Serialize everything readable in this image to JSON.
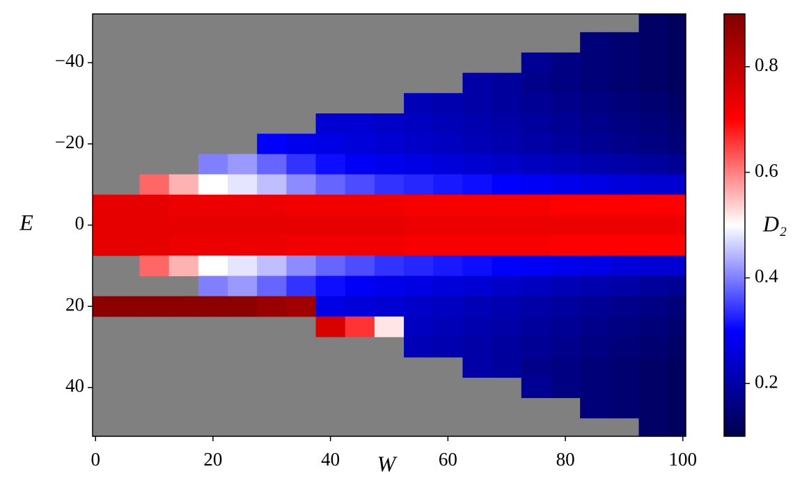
{
  "chart_data": {
    "type": "heatmap",
    "xlabel": "W",
    "ylabel": "E",
    "colorbar_label": "D₂",
    "x": [
      0,
      5,
      10,
      15,
      20,
      25,
      30,
      35,
      40,
      45,
      50,
      55,
      60,
      65,
      70,
      75,
      80,
      85,
      90,
      95,
      100
    ],
    "y": [
      -50,
      -45,
      -40,
      -35,
      -30,
      -25,
      -20,
      -15,
      -10,
      -5,
      0,
      5,
      10,
      15,
      20,
      25,
      30,
      35,
      40,
      45,
      50
    ],
    "z": [
      [
        null,
        null,
        null,
        null,
        null,
        null,
        null,
        null,
        null,
        null,
        null,
        null,
        null,
        null,
        null,
        null,
        null,
        null,
        null,
        0.13,
        0.12
      ],
      [
        null,
        null,
        null,
        null,
        null,
        null,
        null,
        null,
        null,
        null,
        null,
        null,
        null,
        null,
        null,
        null,
        null,
        0.15,
        0.14,
        0.13,
        0.12
      ],
      [
        null,
        null,
        null,
        null,
        null,
        null,
        null,
        null,
        null,
        null,
        null,
        null,
        null,
        null,
        null,
        0.18,
        0.16,
        0.15,
        0.14,
        0.13,
        0.12
      ],
      [
        null,
        null,
        null,
        null,
        null,
        null,
        null,
        null,
        null,
        null,
        null,
        null,
        null,
        0.2,
        0.19,
        0.17,
        0.16,
        0.15,
        0.14,
        0.13,
        0.12
      ],
      [
        null,
        null,
        null,
        null,
        null,
        null,
        null,
        null,
        null,
        null,
        null,
        0.22,
        0.21,
        0.2,
        0.19,
        0.18,
        0.17,
        0.16,
        0.15,
        0.14,
        0.13
      ],
      [
        null,
        null,
        null,
        null,
        null,
        null,
        null,
        null,
        0.25,
        0.25,
        0.24,
        0.23,
        0.22,
        0.21,
        0.2,
        0.19,
        0.18,
        0.17,
        0.16,
        0.15,
        0.14
      ],
      [
        null,
        null,
        null,
        null,
        null,
        null,
        0.3,
        0.28,
        0.27,
        0.26,
        0.25,
        0.24,
        0.23,
        0.22,
        0.21,
        0.2,
        0.19,
        0.18,
        0.17,
        0.16,
        0.15
      ],
      [
        null,
        null,
        null,
        null,
        0.4,
        0.42,
        0.38,
        0.34,
        0.31,
        0.29,
        0.28,
        0.27,
        0.26,
        0.25,
        0.24,
        0.23,
        0.22,
        0.21,
        0.2,
        0.19,
        0.18
      ],
      [
        null,
        null,
        0.62,
        0.56,
        0.5,
        0.48,
        0.45,
        0.41,
        0.38,
        0.36,
        0.34,
        0.33,
        0.32,
        0.31,
        0.3,
        0.29,
        0.28,
        0.27,
        0.26,
        0.25,
        0.25
      ],
      [
        0.74,
        0.74,
        0.74,
        0.73,
        0.73,
        0.73,
        0.73,
        0.72,
        0.72,
        0.72,
        0.72,
        0.71,
        0.71,
        0.71,
        0.71,
        0.71,
        0.7,
        0.7,
        0.7,
        0.7,
        0.7
      ],
      [
        0.74,
        0.74,
        0.74,
        0.74,
        0.74,
        0.74,
        0.74,
        0.74,
        0.74,
        0.74,
        0.74,
        0.73,
        0.73,
        0.73,
        0.73,
        0.73,
        0.73,
        0.73,
        0.73,
        0.73,
        0.73
      ],
      [
        0.74,
        0.74,
        0.74,
        0.73,
        0.73,
        0.73,
        0.73,
        0.72,
        0.72,
        0.72,
        0.72,
        0.71,
        0.71,
        0.71,
        0.71,
        0.71,
        0.7,
        0.7,
        0.7,
        0.7,
        0.7
      ],
      [
        null,
        null,
        0.62,
        0.56,
        0.5,
        0.48,
        0.45,
        0.41,
        0.38,
        0.36,
        0.34,
        0.33,
        0.32,
        0.31,
        0.3,
        0.29,
        0.28,
        0.27,
        0.26,
        0.25,
        0.25
      ],
      [
        null,
        null,
        null,
        null,
        0.4,
        0.42,
        0.38,
        0.34,
        0.31,
        0.29,
        0.28,
        0.27,
        0.26,
        0.25,
        0.24,
        0.23,
        0.22,
        0.21,
        0.2,
        0.19,
        0.18
      ],
      [
        0.88,
        0.88,
        0.88,
        0.88,
        0.88,
        0.88,
        0.86,
        0.85,
        0.27,
        0.26,
        0.25,
        0.24,
        0.23,
        0.22,
        0.21,
        0.2,
        0.19,
        0.18,
        0.17,
        0.16,
        0.15
      ],
      [
        null,
        null,
        null,
        null,
        null,
        null,
        null,
        null,
        0.76,
        0.66,
        0.52,
        0.23,
        0.22,
        0.21,
        0.2,
        0.19,
        0.18,
        0.17,
        0.16,
        0.15,
        0.14
      ],
      [
        null,
        null,
        null,
        null,
        null,
        null,
        null,
        null,
        null,
        null,
        null,
        0.22,
        0.21,
        0.2,
        0.19,
        0.18,
        0.17,
        0.16,
        0.15,
        0.14,
        0.13
      ],
      [
        null,
        null,
        null,
        null,
        null,
        null,
        null,
        null,
        null,
        null,
        null,
        null,
        null,
        0.2,
        0.19,
        0.17,
        0.16,
        0.15,
        0.14,
        0.13,
        0.12
      ],
      [
        null,
        null,
        null,
        null,
        null,
        null,
        null,
        null,
        null,
        null,
        null,
        null,
        null,
        null,
        null,
        0.18,
        0.16,
        0.15,
        0.14,
        0.13,
        0.12
      ],
      [
        null,
        null,
        null,
        null,
        null,
        null,
        null,
        null,
        null,
        null,
        null,
        null,
        null,
        null,
        null,
        null,
        null,
        0.15,
        0.14,
        0.13,
        0.12
      ],
      [
        null,
        null,
        null,
        null,
        null,
        null,
        null,
        null,
        null,
        null,
        null,
        null,
        null,
        null,
        null,
        null,
        null,
        null,
        null,
        0.13,
        0.12
      ]
    ],
    "xlim": [
      -0.5,
      100.5
    ],
    "ylim": [
      -52,
      52
    ],
    "y_inverted": true,
    "xticks": [
      0,
      20,
      40,
      60,
      80,
      100
    ],
    "yticks": [
      {
        "value": -40,
        "label": "−40"
      },
      {
        "value": -20,
        "label": "−20"
      },
      0,
      20,
      40
    ],
    "clim": [
      0.1,
      0.9
    ],
    "cticks": [
      0.2,
      0.4,
      0.6,
      0.8
    ],
    "colormap": [
      "#00004c",
      "#0000ff",
      "#ffffff",
      "#ff0000",
      "#800000"
    ],
    "missing_color": "#808080"
  }
}
